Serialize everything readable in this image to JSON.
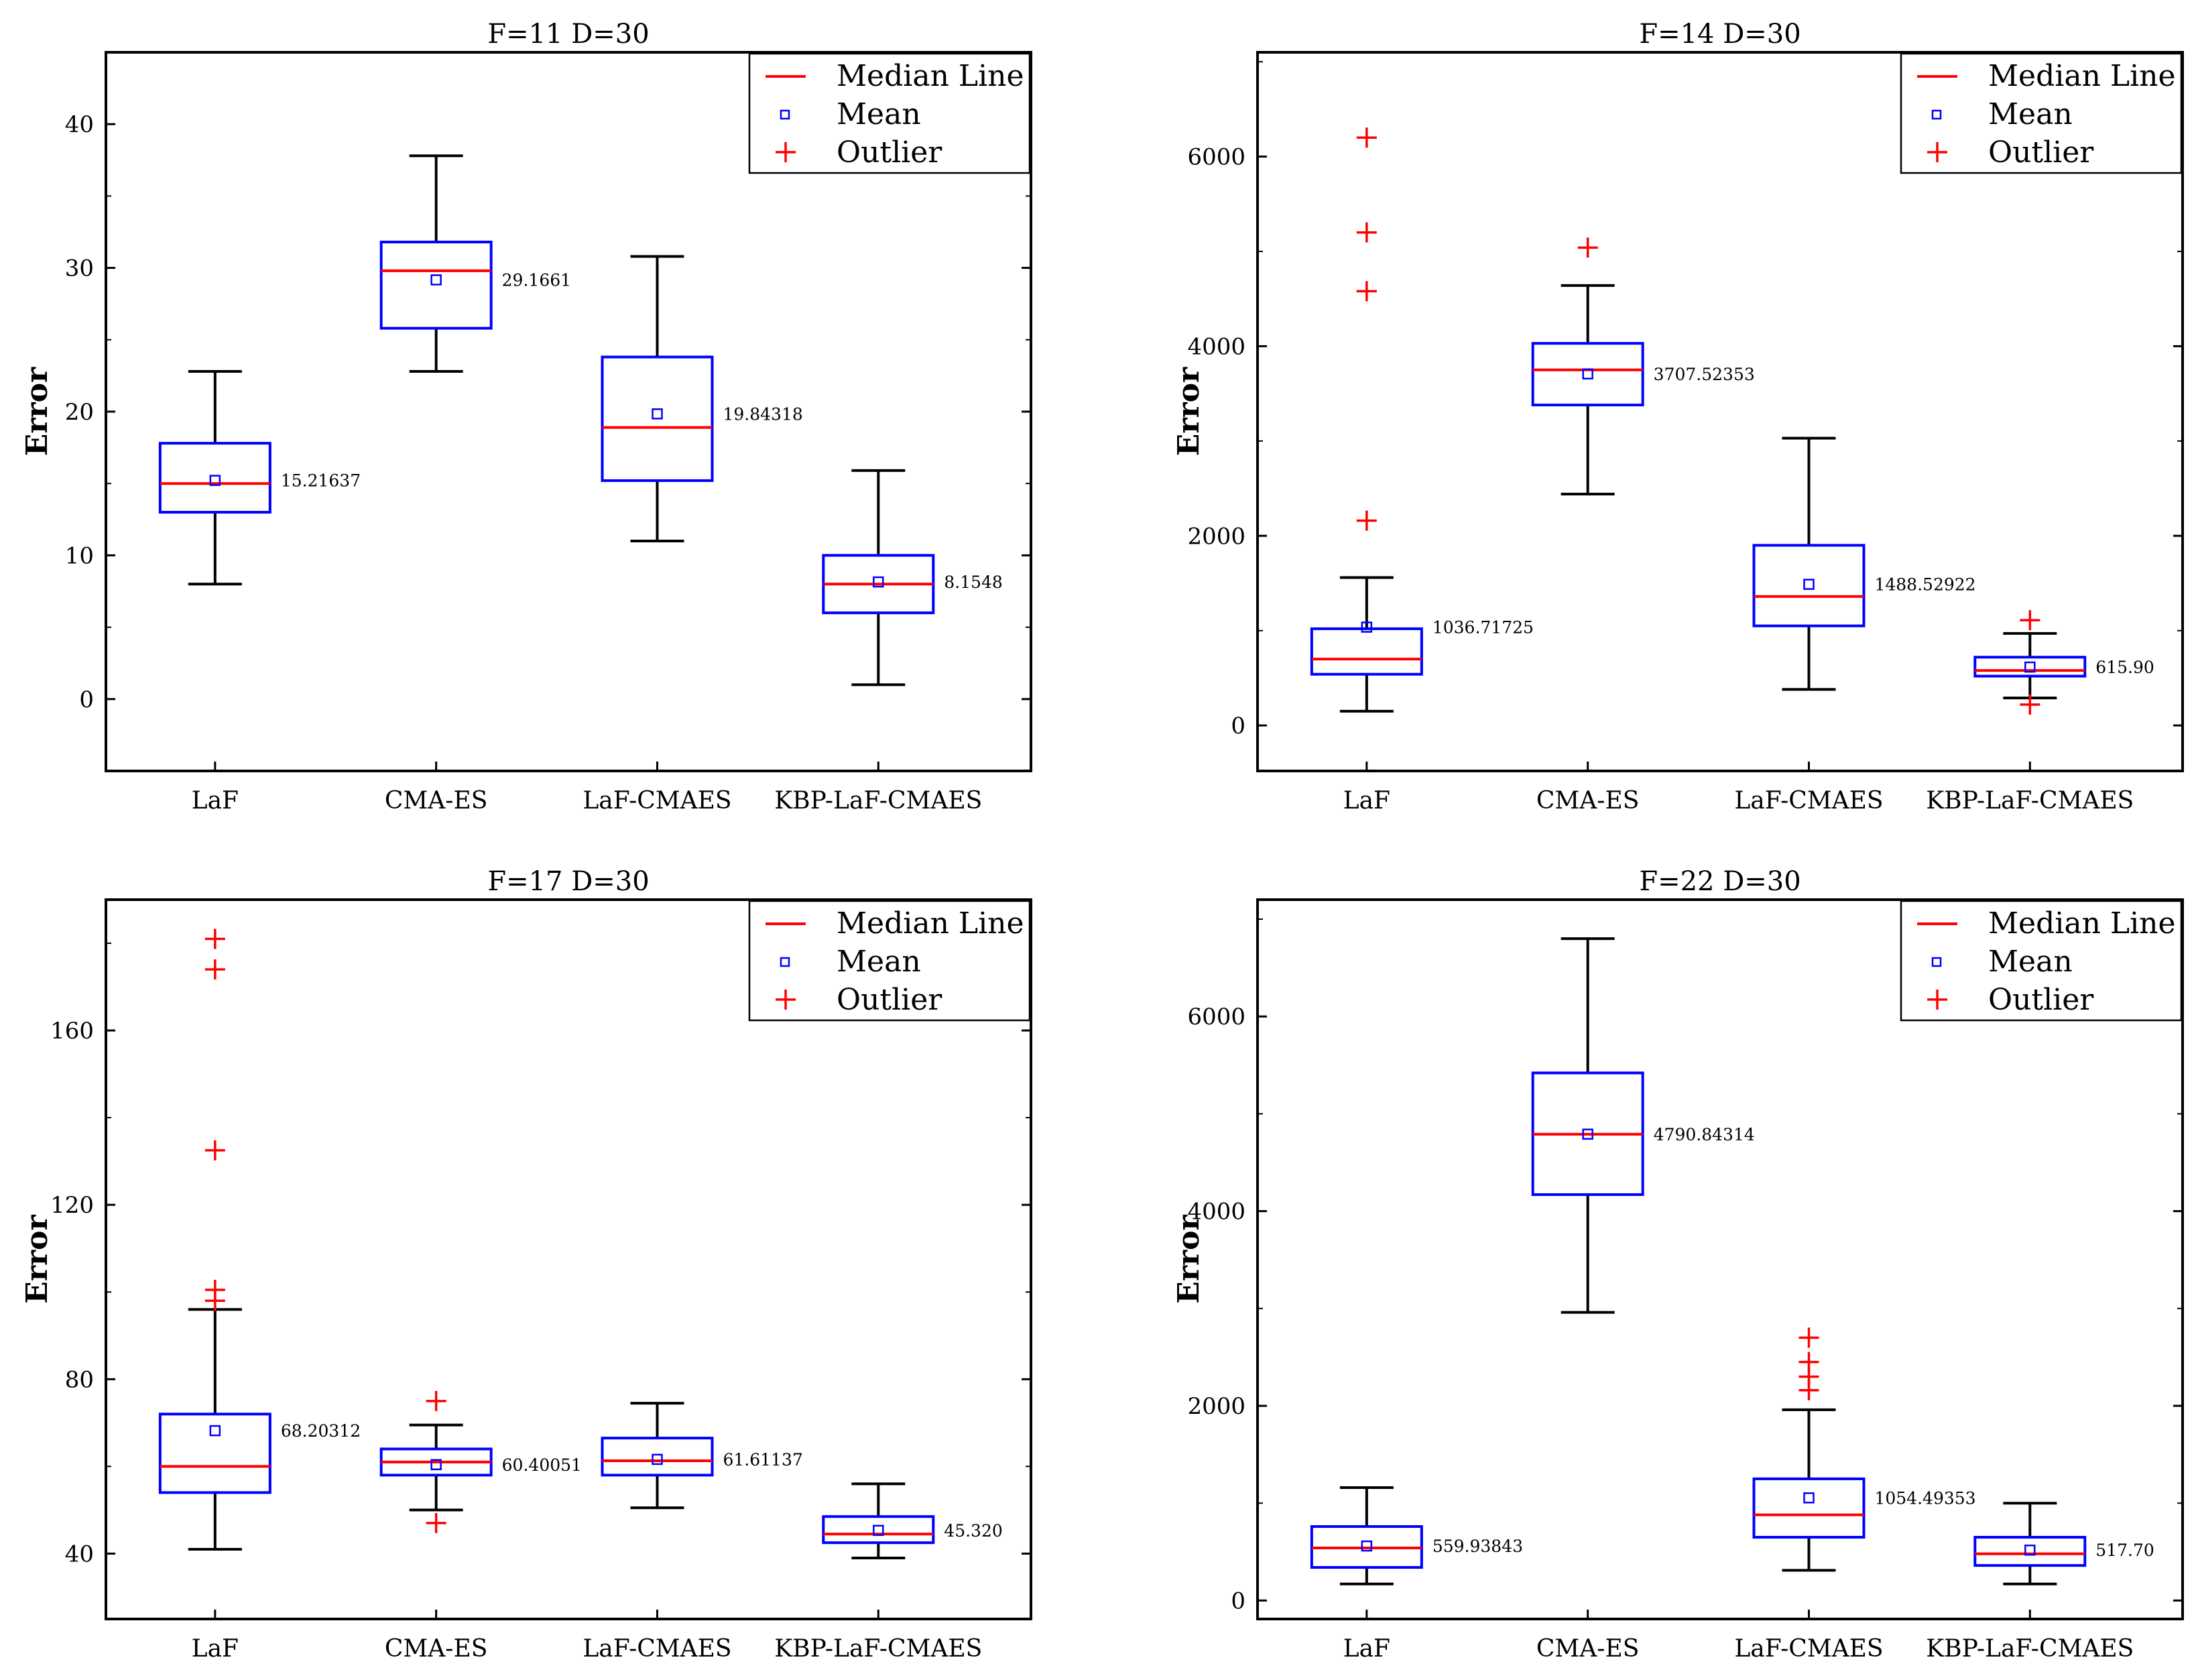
{
  "legend": {
    "median": "Median Line",
    "mean": "Mean",
    "outlier": "Outlier"
  },
  "colors": {
    "box": "#0000ff",
    "median": "#ff0000",
    "outlier": "#ff0000",
    "whisker": "#000000",
    "axis": "#000000"
  },
  "chart_data": [
    {
      "type": "box",
      "title": "F=11 D=30",
      "ylabel": "Error",
      "ylim": [
        -5,
        45
      ],
      "yticks": [
        0,
        10,
        20,
        30,
        40
      ],
      "categories": [
        "LaF",
        "CMA-ES",
        "LaF-CMAES",
        "KBP-LaF-CMAES"
      ],
      "boxes": [
        {
          "q1": 13,
          "median": 15,
          "q3": 17.8,
          "whisker_low": 8,
          "whisker_high": 22.8,
          "mean": 15.21637,
          "mean_label": "15.21637",
          "outliers": []
        },
        {
          "q1": 25.8,
          "median": 29.8,
          "q3": 31.8,
          "whisker_low": 22.8,
          "whisker_high": 37.8,
          "mean": 29.1661,
          "mean_label": "29.1661",
          "outliers": []
        },
        {
          "q1": 15.2,
          "median": 18.9,
          "q3": 23.8,
          "whisker_low": 11,
          "whisker_high": 30.8,
          "mean": 19.84318,
          "mean_label": "19.84318",
          "outliers": []
        },
        {
          "q1": 6,
          "median": 8,
          "q3": 10,
          "whisker_low": 1,
          "whisker_high": 15.9,
          "mean": 8.15,
          "mean_label": "8.1548",
          "outliers": []
        }
      ]
    },
    {
      "type": "box",
      "title": "F=14 D=30",
      "ylabel": "Error",
      "ylim": [
        -480,
        7100
      ],
      "yticks": [
        0,
        2000,
        4000,
        6000
      ],
      "categories": [
        "LaF",
        "CMA-ES",
        "LaF-CMAES",
        "KBP-LaF-CMAES"
      ],
      "boxes": [
        {
          "q1": 540,
          "median": 700,
          "q3": 1020,
          "whisker_low": 150,
          "whisker_high": 1560,
          "mean": 1036.71725,
          "mean_label": "1036.71725",
          "outliers": [
            2160,
            4580,
            5200,
            6200
          ]
        },
        {
          "q1": 3380,
          "median": 3750,
          "q3": 4030,
          "whisker_low": 2440,
          "whisker_high": 4640,
          "mean": 3707.52353,
          "mean_label": "3707.52353",
          "outliers": [
            5040
          ]
        },
        {
          "q1": 1050,
          "median": 1360,
          "q3": 1900,
          "whisker_low": 380,
          "whisker_high": 3030,
          "mean": 1488.52922,
          "mean_label": "1488.52922",
          "outliers": []
        },
        {
          "q1": 520,
          "median": 580,
          "q3": 720,
          "whisker_low": 290,
          "whisker_high": 970,
          "mean": 615.9,
          "mean_label": "615.90",
          "outliers": [
            1110,
            220
          ]
        }
      ]
    },
    {
      "type": "box",
      "title": "F=17 D=30",
      "ylabel": "Error",
      "ylim": [
        25,
        190
      ],
      "yticks": [
        40,
        80,
        120,
        160
      ],
      "categories": [
        "LaF",
        "CMA-ES",
        "LaF-CMAES",
        "KBP-LaF-CMAES"
      ],
      "boxes": [
        {
          "q1": 54,
          "median": 60,
          "q3": 72,
          "whisker_low": 41,
          "whisker_high": 96,
          "mean": 68.20312,
          "mean_label": "68.20312",
          "outliers": [
            98,
            100.5,
            132.5,
            174,
            181
          ]
        },
        {
          "q1": 58,
          "median": 61,
          "q3": 64,
          "whisker_low": 50,
          "whisker_high": 69.5,
          "mean": 60.40051,
          "mean_label": "60.40051",
          "outliers": [
            75,
            47
          ]
        },
        {
          "q1": 58,
          "median": 61.3,
          "q3": 66.5,
          "whisker_low": 50.5,
          "whisker_high": 74.5,
          "mean": 61.61137,
          "mean_label": "61.61137",
          "outliers": []
        },
        {
          "q1": 42.5,
          "median": 44.5,
          "q3": 48.5,
          "whisker_low": 39,
          "whisker_high": 56,
          "mean": 45.32,
          "mean_label": "45.320",
          "outliers": []
        }
      ]
    },
    {
      "type": "box",
      "title": "F=22 D=30",
      "ylabel": "Error",
      "ylim": [
        -190,
        7200
      ],
      "yticks": [
        0,
        2000,
        4000,
        6000
      ],
      "categories": [
        "LaF",
        "CMA-ES",
        "LaF-CMAES",
        "KBP-LaF-CMAES"
      ],
      "boxes": [
        {
          "q1": 340,
          "median": 540,
          "q3": 760,
          "whisker_low": 170,
          "whisker_high": 1160,
          "mean": 559.93843,
          "mean_label": "559.93843",
          "outliers": []
        },
        {
          "q1": 4170,
          "median": 4790,
          "q3": 5420,
          "whisker_low": 2960,
          "whisker_high": 6800,
          "mean": 4790.84314,
          "mean_label": "4790.84314",
          "outliers": []
        },
        {
          "q1": 650,
          "median": 880,
          "q3": 1250,
          "whisker_low": 310,
          "whisker_high": 1960,
          "mean": 1054.49353,
          "mean_label": "1054.49353",
          "outliers": [
            2160,
            2300,
            2450,
            2700
          ]
        },
        {
          "q1": 360,
          "median": 480,
          "q3": 650,
          "whisker_low": 170,
          "whisker_high": 1000,
          "mean": 517.7,
          "mean_label": "517.70",
          "outliers": []
        }
      ]
    }
  ]
}
